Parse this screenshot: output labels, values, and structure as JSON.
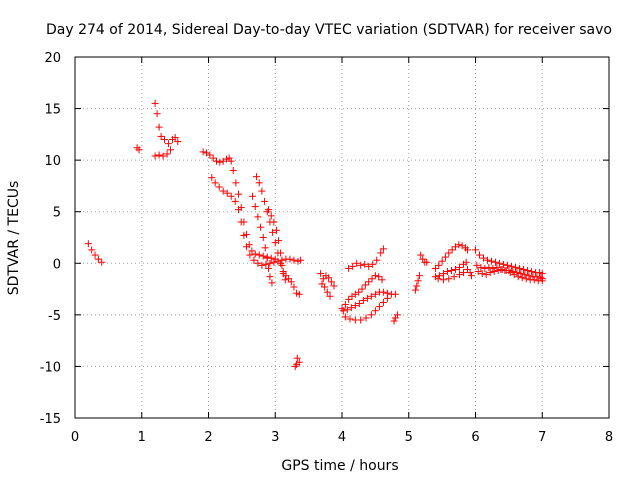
{
  "chart_data": {
    "type": "scatter",
    "title": "Day 274 of 2014, Sidereal Day-to-day VTEC variation (SDTVAR) for receiver savo",
    "xlabel": "GPS time / hours",
    "ylabel": "SDTVAR / TECUs",
    "xlim": [
      0,
      8
    ],
    "ylim": [
      -15,
      20
    ],
    "xticks": [
      0,
      1,
      2,
      3,
      4,
      5,
      6,
      7,
      8
    ],
    "yticks": [
      -15,
      -10,
      -5,
      0,
      5,
      10,
      15,
      20
    ],
    "grid": true,
    "marker": "+",
    "series_color": "#ff0000",
    "segments": [
      {
        "name": "arc-01",
        "points": [
          [
            0.2,
            1.9
          ],
          [
            0.25,
            1.3
          ],
          [
            0.3,
            0.8
          ],
          [
            0.35,
            0.4
          ],
          [
            0.4,
            0.1
          ]
        ]
      },
      {
        "name": "arc-02",
        "points": [
          [
            0.93,
            11.2
          ],
          [
            0.96,
            11.0
          ]
        ]
      },
      {
        "name": "arc-03",
        "points": [
          [
            1.2,
            15.5
          ],
          [
            1.23,
            14.5
          ],
          [
            1.26,
            13.2
          ],
          [
            1.29,
            12.3
          ],
          [
            1.34,
            12.0
          ],
          [
            1.4,
            11.6
          ],
          [
            1.46,
            12.0
          ],
          [
            1.5,
            12.2
          ],
          [
            1.54,
            11.8
          ]
        ]
      },
      {
        "name": "arc-04",
        "points": [
          [
            1.2,
            10.4
          ],
          [
            1.26,
            10.5
          ],
          [
            1.32,
            10.4
          ],
          [
            1.38,
            10.6
          ],
          [
            1.43,
            11.0
          ]
        ]
      },
      {
        "name": "arc-05",
        "points": [
          [
            1.92,
            10.8
          ],
          [
            1.97,
            10.7
          ],
          [
            2.02,
            10.5
          ],
          [
            2.07,
            10.2
          ],
          [
            2.12,
            9.9
          ],
          [
            2.17,
            9.8
          ],
          [
            2.22,
            9.9
          ],
          [
            2.27,
            10.1
          ],
          [
            2.31,
            10.2
          ],
          [
            2.34,
            9.9
          ],
          [
            2.37,
            9.0
          ],
          [
            2.41,
            7.8
          ],
          [
            2.45,
            6.7
          ],
          [
            2.49,
            5.4
          ],
          [
            2.53,
            4.0
          ],
          [
            2.57,
            2.8
          ],
          [
            2.61,
            1.8
          ],
          [
            2.65,
            1.2
          ],
          [
            2.7,
            0.9
          ],
          [
            2.76,
            0.8
          ],
          [
            2.82,
            0.7
          ],
          [
            2.88,
            0.6
          ],
          [
            2.94,
            0.5
          ],
          [
            3.0,
            0.4
          ]
        ]
      },
      {
        "name": "arc-06",
        "points": [
          [
            2.05,
            8.3
          ],
          [
            2.1,
            7.8
          ],
          [
            2.16,
            7.4
          ],
          [
            2.22,
            7.0
          ],
          [
            2.28,
            6.8
          ],
          [
            2.34,
            6.5
          ],
          [
            2.4,
            6.0
          ],
          [
            2.45,
            5.2
          ],
          [
            2.49,
            4.0
          ],
          [
            2.53,
            2.7
          ],
          [
            2.57,
            1.6
          ],
          [
            2.62,
            0.8
          ],
          [
            2.68,
            0.3
          ],
          [
            2.74,
            0.0
          ],
          [
            2.8,
            -0.2
          ],
          [
            2.86,
            -0.1
          ],
          [
            2.92,
            0.0
          ],
          [
            2.98,
            0.1
          ],
          [
            3.04,
            0.2
          ],
          [
            3.1,
            0.3
          ],
          [
            3.16,
            0.4
          ],
          [
            3.22,
            0.4
          ],
          [
            3.28,
            0.3
          ],
          [
            3.34,
            0.2
          ],
          [
            3.38,
            0.3
          ]
        ]
      },
      {
        "name": "arc-07",
        "points": [
          [
            2.72,
            8.4
          ],
          [
            2.76,
            7.8
          ],
          [
            2.8,
            7.0
          ],
          [
            2.84,
            6.0
          ],
          [
            2.88,
            5.0
          ],
          [
            2.92,
            4.0
          ],
          [
            2.96,
            3.0
          ],
          [
            3.0,
            2.0
          ],
          [
            3.04,
            1.0
          ],
          [
            3.08,
            0.0
          ],
          [
            3.12,
            -0.8
          ],
          [
            3.16,
            -1.2
          ],
          [
            3.2,
            -1.5
          ],
          [
            3.24,
            -1.8
          ],
          [
            3.28,
            -2.3
          ],
          [
            3.32,
            -2.9
          ],
          [
            3.36,
            -3.0
          ]
        ]
      },
      {
        "name": "arc-08",
        "points": [
          [
            2.66,
            6.5
          ],
          [
            2.7,
            5.5
          ],
          [
            2.74,
            4.5
          ],
          [
            2.78,
            3.5
          ],
          [
            2.82,
            2.5
          ],
          [
            2.85,
            1.5
          ],
          [
            2.88,
            0.5
          ],
          [
            2.9,
            -0.5
          ],
          [
            2.92,
            -1.3
          ],
          [
            2.95,
            -1.9
          ]
        ]
      },
      {
        "name": "arc-09",
        "points": [
          [
            2.9,
            5.2
          ],
          [
            2.94,
            4.6
          ],
          [
            2.98,
            4.0
          ],
          [
            3.02,
            3.2
          ],
          [
            3.05,
            2.2
          ],
          [
            3.08,
            1.0
          ],
          [
            3.1,
            -0.2
          ],
          [
            3.12,
            -1.0
          ],
          [
            3.15,
            -1.6
          ]
        ]
      },
      {
        "name": "arc-10",
        "points": [
          [
            3.33,
            -9.2
          ],
          [
            3.36,
            -9.6
          ],
          [
            3.3,
            -10.0
          ],
          [
            3.32,
            -9.8
          ]
        ]
      },
      {
        "name": "arc-11",
        "points": [
          [
            3.68,
            -1.0
          ],
          [
            3.72,
            -1.5
          ],
          [
            3.76,
            -1.2
          ],
          [
            3.8,
            -1.4
          ],
          [
            3.84,
            -1.8
          ],
          [
            3.88,
            -2.2
          ]
        ]
      },
      {
        "name": "arc-12",
        "points": [
          [
            3.7,
            -2.0
          ],
          [
            3.74,
            -2.3
          ],
          [
            3.78,
            -2.8
          ],
          [
            3.82,
            -3.2
          ]
        ]
      },
      {
        "name": "arc-13",
        "points": [
          [
            4.0,
            -4.4
          ],
          [
            4.05,
            -4.0
          ],
          [
            4.1,
            -3.5
          ],
          [
            4.15,
            -3.2
          ],
          [
            4.2,
            -3.0
          ],
          [
            4.25,
            -2.8
          ],
          [
            4.3,
            -2.5
          ],
          [
            4.35,
            -2.1
          ],
          [
            4.4,
            -1.8
          ],
          [
            4.45,
            -1.5
          ],
          [
            4.5,
            -1.2
          ],
          [
            4.55,
            -1.3
          ],
          [
            4.6,
            -1.6
          ]
        ]
      },
      {
        "name": "arc-14",
        "points": [
          [
            4.02,
            -4.6
          ],
          [
            4.08,
            -4.5
          ],
          [
            4.14,
            -4.3
          ],
          [
            4.2,
            -4.1
          ],
          [
            4.26,
            -3.9
          ],
          [
            4.32,
            -3.6
          ],
          [
            4.38,
            -3.4
          ],
          [
            4.44,
            -3.2
          ],
          [
            4.5,
            -3.0
          ],
          [
            4.56,
            -2.8
          ],
          [
            4.62,
            -2.8
          ],
          [
            4.68,
            -2.9
          ],
          [
            4.74,
            -3.0
          ],
          [
            4.8,
            -3.0
          ]
        ]
      },
      {
        "name": "arc-15",
        "points": [
          [
            4.05,
            -5.2
          ],
          [
            4.12,
            -5.4
          ],
          [
            4.2,
            -5.5
          ],
          [
            4.28,
            -5.5
          ],
          [
            4.36,
            -5.3
          ],
          [
            4.44,
            -5.0
          ],
          [
            4.5,
            -4.6
          ],
          [
            4.56,
            -4.2
          ],
          [
            4.62,
            -3.8
          ],
          [
            4.68,
            -3.4
          ]
        ]
      },
      {
        "name": "arc-16",
        "points": [
          [
            4.1,
            -0.5
          ],
          [
            4.16,
            -0.3
          ],
          [
            4.22,
            0.0
          ],
          [
            4.28,
            -0.2
          ],
          [
            4.34,
            -0.1
          ],
          [
            4.4,
            -0.3
          ],
          [
            4.46,
            -0.1
          ],
          [
            4.52,
            0.3
          ],
          [
            4.58,
            1.0
          ],
          [
            4.62,
            1.4
          ]
        ]
      },
      {
        "name": "arc-17",
        "points": [
          [
            4.78,
            -5.6
          ],
          [
            4.8,
            -5.3
          ],
          [
            4.83,
            -5.0
          ]
        ]
      },
      {
        "name": "arc-18",
        "points": [
          [
            5.1,
            -2.6
          ],
          [
            5.12,
            -2.2
          ],
          [
            5.14,
            -1.7
          ],
          [
            5.16,
            -1.2
          ]
        ]
      },
      {
        "name": "arc-19",
        "points": [
          [
            5.18,
            0.8
          ],
          [
            5.21,
            0.4
          ],
          [
            5.24,
            0.1
          ],
          [
            5.27,
            0.1
          ]
        ]
      },
      {
        "name": "arc-20",
        "points": [
          [
            5.4,
            -0.5
          ],
          [
            5.45,
            -0.2
          ],
          [
            5.5,
            0.2
          ],
          [
            5.55,
            0.6
          ],
          [
            5.6,
            1.0
          ],
          [
            5.65,
            1.3
          ],
          [
            5.7,
            1.6
          ],
          [
            5.75,
            1.8
          ],
          [
            5.8,
            1.7
          ],
          [
            5.85,
            1.5
          ],
          [
            5.88,
            1.3
          ]
        ]
      },
      {
        "name": "arc-21",
        "points": [
          [
            5.4,
            -1.3
          ],
          [
            5.46,
            -1.2
          ],
          [
            5.52,
            -1.0
          ],
          [
            5.58,
            -0.8
          ],
          [
            5.64,
            -0.7
          ],
          [
            5.7,
            -0.6
          ],
          [
            5.76,
            -0.4
          ],
          [
            5.82,
            -0.1
          ],
          [
            5.86,
            0.1
          ]
        ]
      },
      {
        "name": "arc-22",
        "points": [
          [
            5.44,
            -1.5
          ],
          [
            5.52,
            -1.6
          ],
          [
            5.6,
            -1.5
          ],
          [
            5.68,
            -1.3
          ],
          [
            5.76,
            -1.1
          ],
          [
            5.82,
            -0.9
          ],
          [
            5.88,
            -0.6
          ],
          [
            5.92,
            -0.9
          ],
          [
            5.94,
            -1.2
          ]
        ]
      },
      {
        "name": "arc-23",
        "points": [
          [
            6.0,
            1.3
          ],
          [
            6.06,
            0.8
          ],
          [
            6.12,
            0.5
          ],
          [
            6.18,
            0.3
          ],
          [
            6.24,
            0.2
          ],
          [
            6.3,
            0.1
          ],
          [
            6.36,
            0.0
          ],
          [
            6.42,
            -0.1
          ],
          [
            6.48,
            -0.2
          ],
          [
            6.54,
            -0.3
          ],
          [
            6.6,
            -0.4
          ],
          [
            6.66,
            -0.5
          ],
          [
            6.72,
            -0.6
          ],
          [
            6.78,
            -0.7
          ],
          [
            6.84,
            -0.8
          ],
          [
            6.9,
            -0.9
          ],
          [
            6.96,
            -0.9
          ],
          [
            7.0,
            -1.0
          ]
        ]
      },
      {
        "name": "arc-24",
        "points": [
          [
            6.02,
            -0.2
          ],
          [
            6.08,
            -0.4
          ],
          [
            6.14,
            -0.5
          ],
          [
            6.2,
            -0.4
          ],
          [
            6.26,
            -0.5
          ],
          [
            6.32,
            -0.4
          ],
          [
            6.38,
            -0.6
          ],
          [
            6.44,
            -0.7
          ],
          [
            6.5,
            -0.7
          ],
          [
            6.56,
            -0.8
          ],
          [
            6.62,
            -0.9
          ],
          [
            6.68,
            -1.0
          ],
          [
            6.74,
            -1.1
          ],
          [
            6.8,
            -1.2
          ],
          [
            6.86,
            -1.3
          ],
          [
            6.92,
            -1.3
          ],
          [
            6.98,
            -1.4
          ],
          [
            7.0,
            -1.5
          ]
        ]
      },
      {
        "name": "arc-25",
        "points": [
          [
            6.04,
            -0.8
          ],
          [
            6.1,
            -1.0
          ],
          [
            6.16,
            -1.1
          ],
          [
            6.22,
            -0.9
          ],
          [
            6.28,
            -0.8
          ],
          [
            6.34,
            -0.7
          ],
          [
            6.4,
            -0.6
          ],
          [
            6.46,
            -0.7
          ],
          [
            6.52,
            -0.9
          ],
          [
            6.58,
            -1.1
          ],
          [
            6.64,
            -1.3
          ],
          [
            6.7,
            -1.4
          ],
          [
            6.76,
            -1.5
          ],
          [
            6.82,
            -1.6
          ],
          [
            6.88,
            -1.6
          ],
          [
            6.94,
            -1.7
          ],
          [
            7.0,
            -1.7
          ]
        ]
      }
    ]
  }
}
